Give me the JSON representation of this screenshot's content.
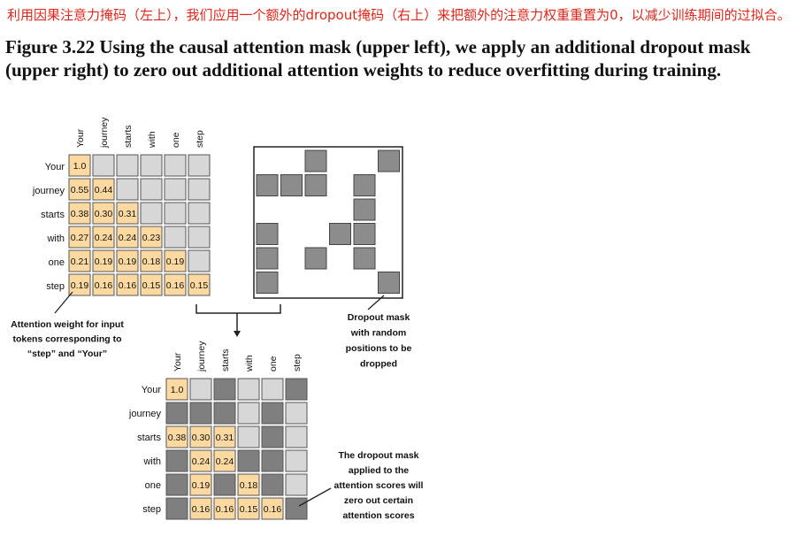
{
  "annotation": "利用因果注意力掩码（左上），我们应用一个额外的dropout掩码（右上）来把额外的注意力权重重置为0，以减少训练期间的过拟合。",
  "caption": "Figure 3.22 Using the causal attention mask (upper left), we apply an additional dropout mask (upper right) to zero out additional attention weights to reduce overfitting during training.",
  "tokens": [
    "Your",
    "journey",
    "starts",
    "with",
    "one",
    "step"
  ],
  "causal_matrix": [
    [
      "1.0"
    ],
    [
      "0.55",
      "0.44"
    ],
    [
      "0.38",
      "0.30",
      "0.31"
    ],
    [
      "0.27",
      "0.24",
      "0.24",
      "0.23"
    ],
    [
      "0.21",
      "0.19",
      "0.19",
      "0.18",
      "0.19"
    ],
    [
      "0.19",
      "0.16",
      "0.16",
      "0.15",
      "0.16",
      "0.15"
    ]
  ],
  "dropout_cells": [
    [
      0,
      2
    ],
    [
      0,
      5
    ],
    [
      1,
      0
    ],
    [
      1,
      1
    ],
    [
      1,
      2
    ],
    [
      1,
      4
    ],
    [
      2,
      4
    ],
    [
      3,
      0
    ],
    [
      3,
      3
    ],
    [
      3,
      4
    ],
    [
      4,
      0
    ],
    [
      4,
      2
    ],
    [
      4,
      4
    ],
    [
      5,
      0
    ],
    [
      5,
      5
    ]
  ],
  "result_matrix": [
    [
      "1.0",
      "",
      "",
      "",
      "",
      ""
    ],
    [
      "",
      "",
      "",
      "",
      "",
      ""
    ],
    [
      "0.38",
      "0.30",
      "0.31",
      "",
      "",
      ""
    ],
    [
      "",
      "0.24",
      "0.24",
      "",
      "",
      ""
    ],
    [
      "",
      "0.19",
      "",
      "0.18",
      "",
      ""
    ],
    [
      "",
      "0.16",
      "0.16",
      "0.15",
      "0.16",
      ""
    ]
  ],
  "result_dark": [
    [
      0,
      2
    ],
    [
      0,
      5
    ],
    [
      1,
      0
    ],
    [
      1,
      1
    ],
    [
      1,
      2
    ],
    [
      1,
      4
    ],
    [
      2,
      4
    ],
    [
      3,
      0
    ],
    [
      3,
      3
    ],
    [
      3,
      4
    ],
    [
      4,
      0
    ],
    [
      4,
      2
    ],
    [
      4,
      4
    ],
    [
      5,
      0
    ],
    [
      5,
      5
    ]
  ],
  "note_attention": [
    "Attention weight for input",
    "tokens corresponding to",
    "“step” and “Your”"
  ],
  "note_dropout": [
    "Dropout mask",
    "with random",
    "positions to be",
    "dropped"
  ],
  "note_result": [
    "The dropout mask",
    "applied to the",
    "attention scores will",
    "zero out certain",
    "attention scores"
  ],
  "colors": {
    "value": "#fcd9a0",
    "empty": "#d7d7d7",
    "dark": "#8c8c8c",
    "dark_result": "#7f7f7f"
  }
}
